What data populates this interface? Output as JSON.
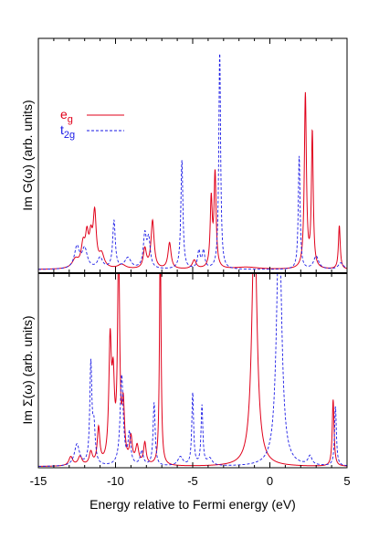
{
  "chart_data": [
    {
      "type": "line",
      "panel": "top",
      "ylabel": "Im G(ω) (arb. units)",
      "xlim": [
        -15,
        5
      ],
      "ylim": [
        0,
        1
      ],
      "legend": {
        "placement": "top-left",
        "entries": [
          {
            "base": "e",
            "sub": "g",
            "style": "solid",
            "color": "#e0001a"
          },
          {
            "base": "t",
            "sub": "2g",
            "style": "dashed",
            "color": "#1a1ae6"
          }
        ]
      },
      "series": [
        {
          "name": "e_g",
          "color": "#e0001a",
          "style": "solid",
          "baseline": 0.012,
          "peaks": [
            {
              "x": -12.6,
              "h": 0.04,
              "w": 0.25
            },
            {
              "x": -12.1,
              "h": 0.1,
              "w": 0.15
            },
            {
              "x": -11.85,
              "h": 0.13,
              "w": 0.12
            },
            {
              "x": -11.6,
              "h": 0.12,
              "w": 0.12
            },
            {
              "x": -11.35,
              "h": 0.24,
              "w": 0.12
            },
            {
              "x": -10.9,
              "h": 0.06,
              "w": 0.2
            },
            {
              "x": -9.6,
              "h": 0.02,
              "w": 0.3
            },
            {
              "x": -8.1,
              "h": 0.09,
              "w": 0.12
            },
            {
              "x": -7.6,
              "h": 0.22,
              "w": 0.12
            },
            {
              "x": -6.5,
              "h": 0.12,
              "w": 0.12
            },
            {
              "x": -4.9,
              "h": 0.04,
              "w": 0.15
            },
            {
              "x": -3.8,
              "h": 0.31,
              "w": 0.08
            },
            {
              "x": -3.55,
              "h": 0.43,
              "w": 0.08
            },
            {
              "x": -1.5,
              "h": 0.01,
              "w": 1.0
            },
            {
              "x": 2.3,
              "h": 0.8,
              "w": 0.08
            },
            {
              "x": 2.75,
              "h": 0.62,
              "w": 0.07
            },
            {
              "x": 4.5,
              "h": 0.2,
              "w": 0.07
            }
          ]
        },
        {
          "name": "t_2g",
          "color": "#1a1ae6",
          "style": "dashed",
          "baseline": 0.012,
          "peaks": [
            {
              "x": -12.5,
              "h": 0.1,
              "w": 0.2
            },
            {
              "x": -12.0,
              "h": 0.09,
              "w": 0.2
            },
            {
              "x": -11.0,
              "h": 0.05,
              "w": 0.2
            },
            {
              "x": -10.1,
              "h": 0.22,
              "w": 0.1
            },
            {
              "x": -9.2,
              "h": 0.05,
              "w": 0.25
            },
            {
              "x": -8.1,
              "h": 0.15,
              "w": 0.12
            },
            {
              "x": -7.85,
              "h": 0.13,
              "w": 0.12
            },
            {
              "x": -5.7,
              "h": 0.5,
              "w": 0.08
            },
            {
              "x": -4.6,
              "h": 0.08,
              "w": 0.1
            },
            {
              "x": -4.3,
              "h": 0.08,
              "w": 0.1
            },
            {
              "x": -3.25,
              "h": 1.0,
              "w": 0.07
            },
            {
              "x": 1.9,
              "h": 0.52,
              "w": 0.07
            },
            {
              "x": 3.0,
              "h": 0.06,
              "w": 0.2
            },
            {
              "x": 4.6,
              "h": 0.03,
              "w": 0.2
            }
          ]
        }
      ]
    },
    {
      "type": "line",
      "panel": "bottom",
      "ylabel": "Im Σ(ω) (arb. units)",
      "xlabel": "Energy relative to Fermi energy (eV)",
      "xlim": [
        -15,
        5
      ],
      "ylim": [
        0,
        1
      ],
      "xticks": [
        -15,
        -10,
        -5,
        0,
        5
      ],
      "series": [
        {
          "name": "e_g",
          "color": "#e0001a",
          "style": "solid",
          "baseline": 0.006,
          "peaks": [
            {
              "x": -12.9,
              "h": 0.05,
              "w": 0.15
            },
            {
              "x": -12.3,
              "h": 0.05,
              "w": 0.15
            },
            {
              "x": -11.6,
              "h": 0.07,
              "w": 0.12
            },
            {
              "x": -11.1,
              "h": 0.2,
              "w": 0.1
            },
            {
              "x": -10.35,
              "h": 0.65,
              "w": 0.1
            },
            {
              "x": -10.15,
              "h": 0.4,
              "w": 0.1
            },
            {
              "x": -9.8,
              "h": 1.2,
              "w": 0.08
            },
            {
              "x": -9.5,
              "h": 0.3,
              "w": 0.1
            },
            {
              "x": -9.0,
              "h": 0.14,
              "w": 0.1
            },
            {
              "x": -8.6,
              "h": 0.1,
              "w": 0.12
            },
            {
              "x": -8.1,
              "h": 0.12,
              "w": 0.1
            },
            {
              "x": -7.1,
              "h": 1.3,
              "w": 0.06
            },
            {
              "x": -1.0,
              "h": 1.4,
              "w": 0.2
            },
            {
              "x": 4.1,
              "h": 0.37,
              "w": 0.07
            }
          ]
        },
        {
          "name": "t_2g",
          "color": "#1a1ae6",
          "style": "dashed",
          "baseline": 0.006,
          "peaks": [
            {
              "x": -12.5,
              "h": 0.12,
              "w": 0.2
            },
            {
              "x": -11.6,
              "h": 0.55,
              "w": 0.08
            },
            {
              "x": -11.4,
              "h": 0.2,
              "w": 0.1
            },
            {
              "x": -9.6,
              "h": 0.5,
              "w": 0.12
            },
            {
              "x": -9.1,
              "h": 0.17,
              "w": 0.1
            },
            {
              "x": -8.3,
              "h": 0.08,
              "w": 0.12
            },
            {
              "x": -7.5,
              "h": 0.35,
              "w": 0.08
            },
            {
              "x": -5.8,
              "h": 0.05,
              "w": 0.2
            },
            {
              "x": -5.0,
              "h": 0.4,
              "w": 0.07
            },
            {
              "x": -4.4,
              "h": 0.33,
              "w": 0.07
            },
            {
              "x": -3.9,
              "h": 0.04,
              "w": 0.2
            },
            {
              "x": 0.6,
              "h": 1.4,
              "w": 0.2
            },
            {
              "x": 2.6,
              "h": 0.05,
              "w": 0.15
            },
            {
              "x": 4.25,
              "h": 0.33,
              "w": 0.07
            }
          ]
        }
      ]
    }
  ]
}
